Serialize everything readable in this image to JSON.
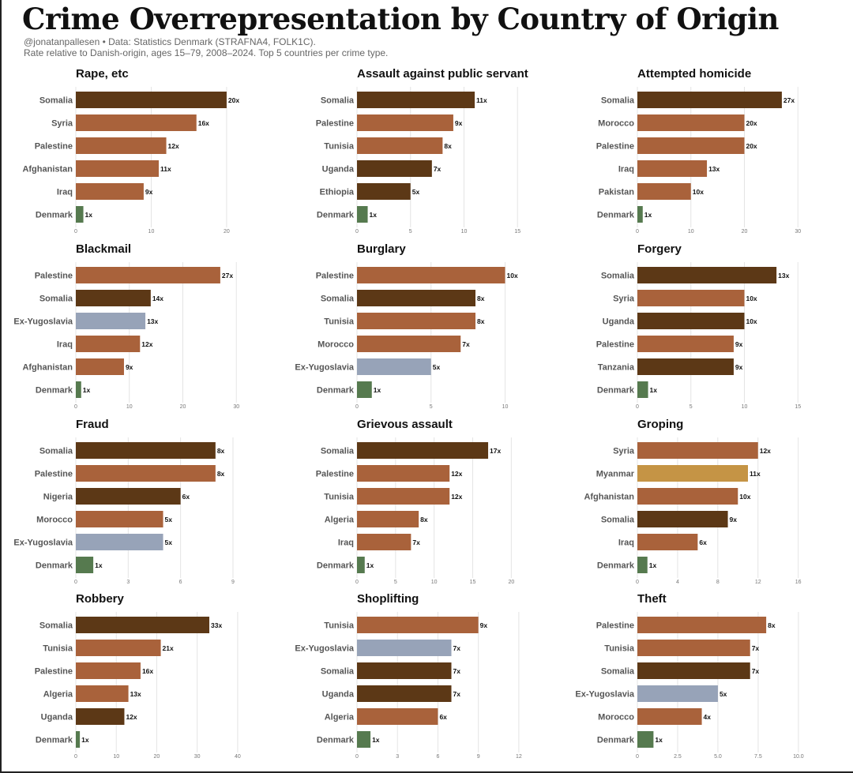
{
  "header": {
    "title": "Crime Overrepresentation by Country of Origin",
    "subtitle_line1": "@jonatanpallesen • Data: Statistics Denmark (STRAFNA4, FOLK1C).",
    "subtitle_line2": "Rate relative to Danish-origin, ages 15–79, 2008–2024. Top 5 countries per crime type."
  },
  "colors": {
    "mena": "#a9623b",
    "africa": "#5c3816",
    "europe": "#97a3b8",
    "asia": "#c59445",
    "denmark": "#567a4f"
  },
  "chart_data": [
    {
      "type": "bar",
      "title": "Rape, etc",
      "categories": [
        "Somalia",
        "Syria",
        "Palestine",
        "Afghanistan",
        "Iraq",
        "Denmark"
      ],
      "values": [
        20,
        16,
        12,
        11,
        9,
        1
      ],
      "labels": [
        "20x",
        "16x",
        "12x",
        "11x",
        "9x",
        "1x"
      ],
      "color_groups": [
        "africa",
        "mena",
        "mena",
        "mena",
        "mena",
        "denmark"
      ],
      "xlim": [
        0,
        22
      ],
      "ticks": [
        0,
        10,
        20
      ],
      "grid": true
    },
    {
      "type": "bar",
      "title": "Assault against public servant",
      "categories": [
        "Somalia",
        "Palestine",
        "Tunisia",
        "Uganda",
        "Ethiopia",
        "Denmark"
      ],
      "values": [
        11,
        9,
        8,
        7,
        5,
        1
      ],
      "labels": [
        "11x",
        "9x",
        "8x",
        "7x",
        "5x",
        "1x"
      ],
      "color_groups": [
        "africa",
        "mena",
        "mena",
        "africa",
        "africa",
        "denmark"
      ],
      "xlim": [
        0,
        15.5
      ],
      "ticks": [
        0,
        5,
        10,
        15
      ],
      "grid": true
    },
    {
      "type": "bar",
      "title": "Attempted homicide",
      "categories": [
        "Somalia",
        "Morocco",
        "Palestine",
        "Iraq",
        "Pakistan",
        "Denmark"
      ],
      "values": [
        27,
        20,
        20,
        13,
        10,
        1
      ],
      "labels": [
        "27x",
        "20x",
        "20x",
        "13x",
        "10x",
        "1x"
      ],
      "color_groups": [
        "africa",
        "mena",
        "mena",
        "mena",
        "mena",
        "denmark"
      ],
      "xlim": [
        0,
        31
      ],
      "ticks": [
        0,
        10,
        20,
        30
      ],
      "grid": true
    },
    {
      "type": "bar",
      "title": "Blackmail",
      "categories": [
        "Palestine",
        "Somalia",
        "Ex-Yugoslavia",
        "Iraq",
        "Afghanistan",
        "Denmark"
      ],
      "values": [
        27,
        14,
        13,
        12,
        9,
        1
      ],
      "labels": [
        "27x",
        "14x",
        "13x",
        "12x",
        "9x",
        "1x"
      ],
      "color_groups": [
        "mena",
        "africa",
        "europe",
        "mena",
        "mena",
        "denmark"
      ],
      "xlim": [
        0,
        31
      ],
      "ticks": [
        0,
        10,
        20,
        30
      ],
      "grid": true
    },
    {
      "type": "bar",
      "title": "Burglary",
      "categories": [
        "Palestine",
        "Somalia",
        "Tunisia",
        "Morocco",
        "Ex-Yugoslavia",
        "Denmark"
      ],
      "values": [
        10,
        8,
        8,
        7,
        5,
        1
      ],
      "labels": [
        "10x",
        "8x",
        "8x",
        "7x",
        "5x",
        "1x"
      ],
      "color_groups": [
        "mena",
        "africa",
        "mena",
        "mena",
        "europe",
        "denmark"
      ],
      "xlim": [
        0,
        11.2
      ],
      "ticks": [
        0,
        5,
        10
      ],
      "grid": true
    },
    {
      "type": "bar",
      "title": "Forgery",
      "categories": [
        "Somalia",
        "Syria",
        "Uganda",
        "Palestine",
        "Tanzania",
        "Denmark"
      ],
      "values": [
        13,
        10,
        10,
        9,
        9,
        1
      ],
      "labels": [
        "13x",
        "10x",
        "10x",
        "9x",
        "9x",
        "1x"
      ],
      "color_groups": [
        "africa",
        "mena",
        "africa",
        "mena",
        "africa",
        "denmark"
      ],
      "xlim": [
        0,
        15.5
      ],
      "ticks": [
        0,
        5,
        10,
        15
      ],
      "grid": true
    },
    {
      "type": "bar",
      "title": "Fraud",
      "categories": [
        "Somalia",
        "Palestine",
        "Nigeria",
        "Morocco",
        "Ex-Yugoslavia",
        "Denmark"
      ],
      "values": [
        8,
        8,
        6,
        5,
        5,
        1
      ],
      "labels": [
        "8x",
        "8x",
        "6x",
        "5x",
        "5x",
        "1x"
      ],
      "color_groups": [
        "africa",
        "mena",
        "africa",
        "mena",
        "europe",
        "denmark"
      ],
      "xlim": [
        0,
        9.5
      ],
      "ticks": [
        0,
        3,
        6,
        9
      ],
      "grid": true
    },
    {
      "type": "bar",
      "title": "Grievous assault",
      "categories": [
        "Somalia",
        "Palestine",
        "Tunisia",
        "Algeria",
        "Iraq",
        "Denmark"
      ],
      "values": [
        17,
        12,
        12,
        8,
        7,
        1
      ],
      "labels": [
        "17x",
        "12x",
        "12x",
        "8x",
        "7x",
        "1x"
      ],
      "color_groups": [
        "africa",
        "mena",
        "mena",
        "mena",
        "mena",
        "denmark"
      ],
      "xlim": [
        0,
        21.5
      ],
      "ticks": [
        0,
        5,
        10,
        15,
        20
      ],
      "grid": true
    },
    {
      "type": "bar",
      "title": "Groping",
      "categories": [
        "Syria",
        "Myanmar",
        "Afghanistan",
        "Somalia",
        "Iraq",
        "Denmark"
      ],
      "values": [
        12,
        11,
        10,
        9,
        6,
        1
      ],
      "labels": [
        "12x",
        "11x",
        "10x",
        "9x",
        "6x",
        "1x"
      ],
      "color_groups": [
        "mena",
        "asia",
        "mena",
        "africa",
        "mena",
        "denmark"
      ],
      "xlim": [
        0,
        16.5
      ],
      "ticks": [
        0,
        4,
        8,
        12,
        16
      ],
      "grid": true
    },
    {
      "type": "bar",
      "title": "Robbery",
      "categories": [
        "Somalia",
        "Tunisia",
        "Palestine",
        "Algeria",
        "Uganda",
        "Denmark"
      ],
      "values": [
        33,
        21,
        16,
        13,
        12,
        1
      ],
      "labels": [
        "33x",
        "21x",
        "16x",
        "13x",
        "12x",
        "1x"
      ],
      "color_groups": [
        "africa",
        "mena",
        "mena",
        "mena",
        "africa",
        "denmark"
      ],
      "xlim": [
        0,
        41
      ],
      "ticks": [
        0,
        10,
        20,
        30,
        40
      ],
      "grid": true
    },
    {
      "type": "bar",
      "title": "Shoplifting",
      "categories": [
        "Tunisia",
        "Ex-Yugoslavia",
        "Somalia",
        "Uganda",
        "Algeria",
        "Denmark"
      ],
      "values": [
        9,
        7,
        7,
        7,
        6,
        1
      ],
      "labels": [
        "9x",
        "7x",
        "7x",
        "7x",
        "6x",
        "1x"
      ],
      "color_groups": [
        "mena",
        "europe",
        "africa",
        "africa",
        "mena",
        "denmark"
      ],
      "xlim": [
        0,
        12.3
      ],
      "ticks": [
        0,
        3,
        6,
        9,
        12
      ],
      "grid": true
    },
    {
      "type": "bar",
      "title": "Theft",
      "categories": [
        "Palestine",
        "Tunisia",
        "Somalia",
        "Ex-Yugoslavia",
        "Morocco",
        "Denmark"
      ],
      "values": [
        8,
        7,
        7,
        5,
        4,
        1
      ],
      "labels": [
        "8x",
        "7x",
        "7x",
        "5x",
        "4x",
        "1x"
      ],
      "color_groups": [
        "mena",
        "mena",
        "africa",
        "europe",
        "mena",
        "denmark"
      ],
      "xlim": [
        0,
        10.3
      ],
      "ticks": [
        0,
        2.5,
        5.0,
        7.5,
        10.0
      ],
      "tick_labels": [
        "0",
        "2.5",
        "5.0",
        "7.5",
        "10.0"
      ],
      "grid": true
    }
  ]
}
